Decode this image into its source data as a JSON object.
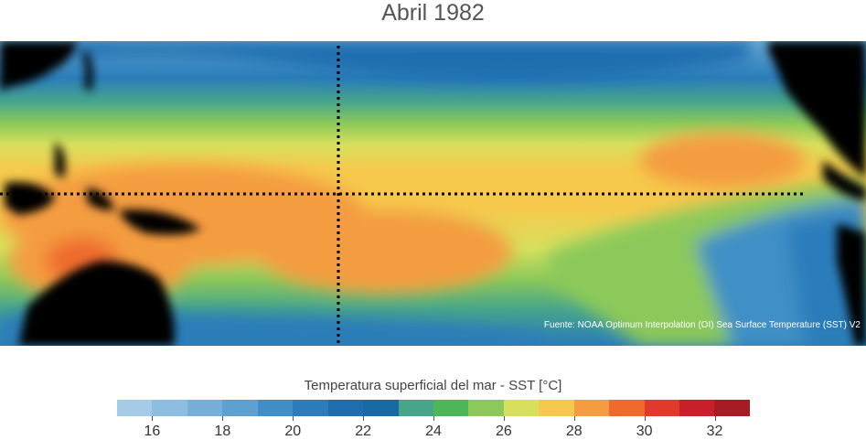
{
  "title": "Abril 1982",
  "source": "Fuente: NOAA Optimum Interpolation (OI) Sea Surface Temperature (SST) V2",
  "colorbar": {
    "label": "Temperatura superficial del mar - SST  [°C]",
    "min": 15,
    "max": 33,
    "colors": [
      "#a6cbe6",
      "#8fbde0",
      "#78afd8",
      "#5ea1d1",
      "#3f8fc6",
      "#2a7dba",
      "#1d6daf",
      "#176aa5",
      "#47a58a",
      "#4cb65a",
      "#8cc95a",
      "#d7e05d",
      "#f6c94c",
      "#f49c3f",
      "#ee6a2d",
      "#e03a2a",
      "#c8202b",
      "#a71b25"
    ],
    "ticks": [
      16,
      18,
      20,
      22,
      24,
      26,
      28,
      30,
      32
    ],
    "tick_labels": [
      "16",
      "18",
      "20",
      "22",
      "24",
      "26",
      "28",
      "30",
      "32"
    ]
  },
  "map": {
    "description_colors": {
      "land": "#000000",
      "cold_ocean": "#2a7dba",
      "warm_pool": "#f49c3f",
      "tropics": "#d7e05d"
    }
  }
}
